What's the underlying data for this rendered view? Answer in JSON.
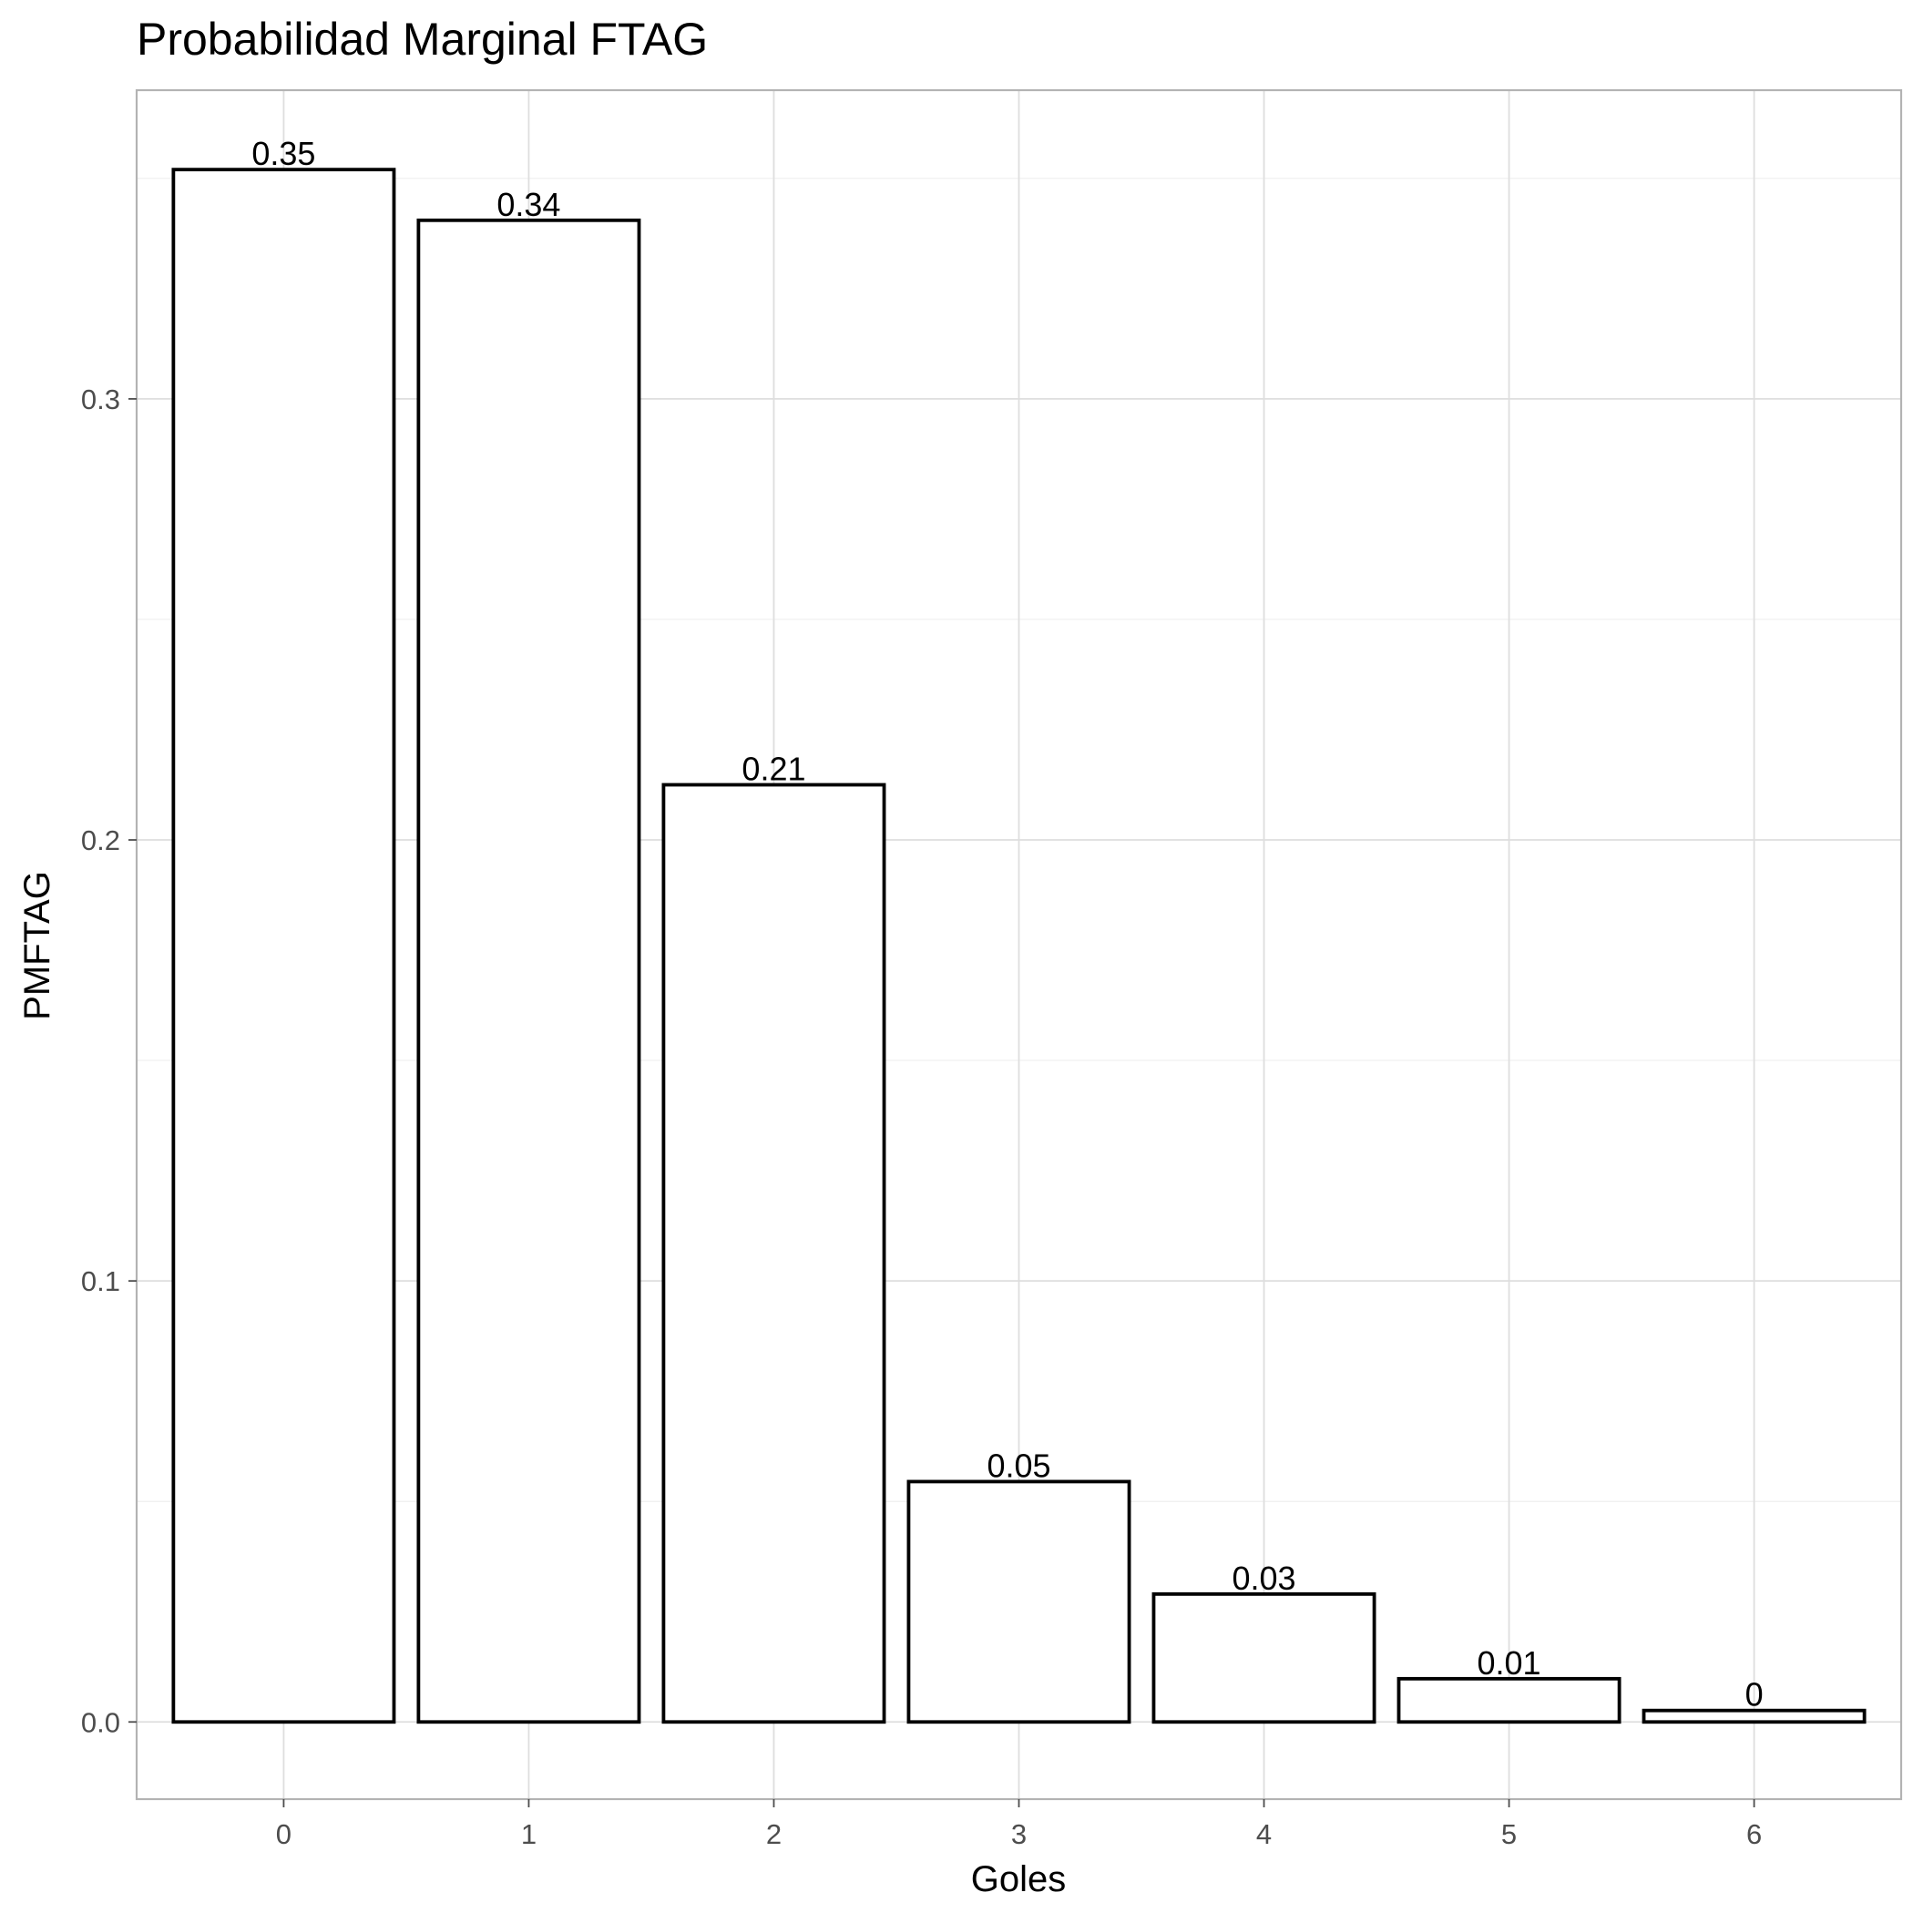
{
  "chart_data": {
    "type": "bar",
    "title": "Probabilidad Marginal FTAG",
    "xlabel": "Goles",
    "ylabel": "PMFTAG",
    "categories": [
      "0",
      "1",
      "2",
      "3",
      "4",
      "5",
      "6"
    ],
    "values": [
      0.352,
      0.3405,
      0.2125,
      0.0545,
      0.029,
      0.0098,
      0.0026
    ],
    "labels": [
      "0.35",
      "0.34",
      "0.21",
      "0.05",
      "0.03",
      "0.01",
      "0"
    ],
    "yticks": [
      0.0,
      0.1,
      0.2,
      0.3
    ],
    "ytick_labels": [
      "0.0",
      "0.1",
      "0.2",
      "0.3"
    ],
    "ylim": [
      -0.0175,
      0.37
    ],
    "grid": true,
    "bar_fill": "#ffffff",
    "bar_stroke": "#000000"
  }
}
